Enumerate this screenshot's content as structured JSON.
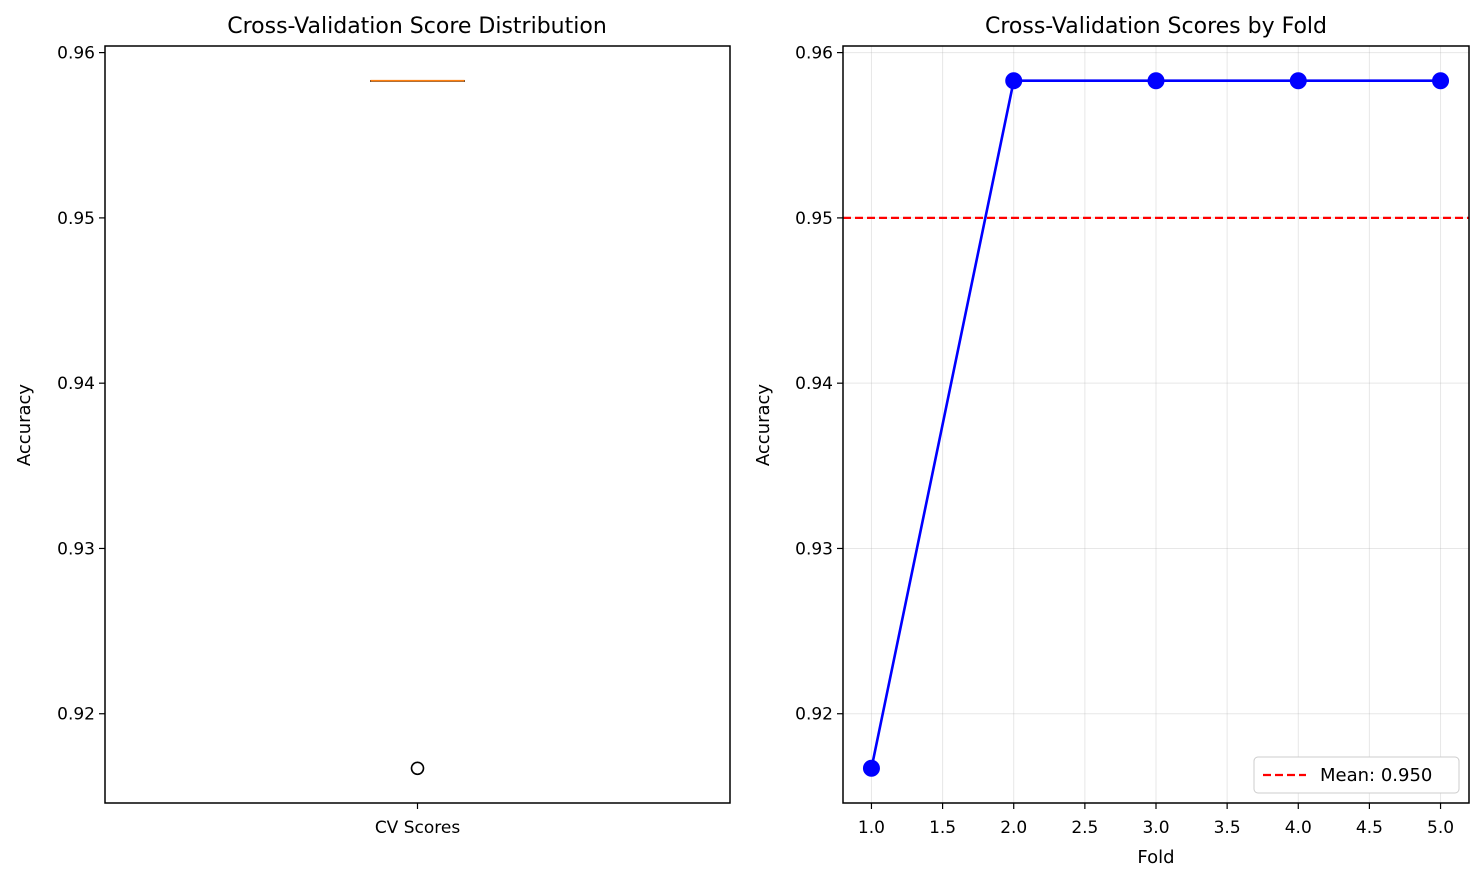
{
  "chart_data": [
    {
      "type": "box",
      "title": "Cross-Validation Score Distribution",
      "xlabel": "",
      "ylabel": "Accuracy",
      "categories": [
        "CV Scores"
      ],
      "box": {
        "q1": 0.9583,
        "median": 0.9583,
        "q3": 0.9583,
        "whisker_low": 0.9583,
        "whisker_high": 0.9583,
        "outliers": [
          0.9167
        ]
      },
      "ylim": [
        0.9146,
        0.9604
      ],
      "yticks": [
        0.92,
        0.93,
        0.94,
        0.95,
        0.96
      ],
      "ytick_labels": [
        "0.92",
        "0.93",
        "0.94",
        "0.95",
        "0.96"
      ],
      "grid": false,
      "colors": {
        "median": "#ff7f0e",
        "box": "#000000",
        "outlier": "#000000"
      }
    },
    {
      "type": "line",
      "title": "Cross-Validation Scores by Fold",
      "xlabel": "Fold",
      "ylabel": "Accuracy",
      "series": [
        {
          "x": [
            1,
            2,
            3,
            4,
            5
          ],
          "values": [
            0.9167,
            0.9583,
            0.9583,
            0.9583,
            0.9583
          ],
          "color": "#0000ff",
          "marker": "circle"
        }
      ],
      "reference_line": {
        "value": 0.95,
        "label": "Mean: 0.950",
        "color": "#ff0000",
        "style": "dashed"
      },
      "xlim": [
        0.8,
        5.2
      ],
      "ylim": [
        0.9146,
        0.9604
      ],
      "xticks": [
        1.0,
        1.5,
        2.0,
        2.5,
        3.0,
        3.5,
        4.0,
        4.5,
        5.0
      ],
      "xtick_labels": [
        "1.0",
        "1.5",
        "2.0",
        "2.5",
        "3.0",
        "3.5",
        "4.0",
        "4.5",
        "5.0"
      ],
      "yticks": [
        0.92,
        0.93,
        0.94,
        0.95,
        0.96
      ],
      "ytick_labels": [
        "0.92",
        "0.93",
        "0.94",
        "0.95",
        "0.96"
      ],
      "grid": true,
      "legend": {
        "placement": "lower-right",
        "entries": [
          "Mean: 0.950"
        ]
      }
    }
  ]
}
